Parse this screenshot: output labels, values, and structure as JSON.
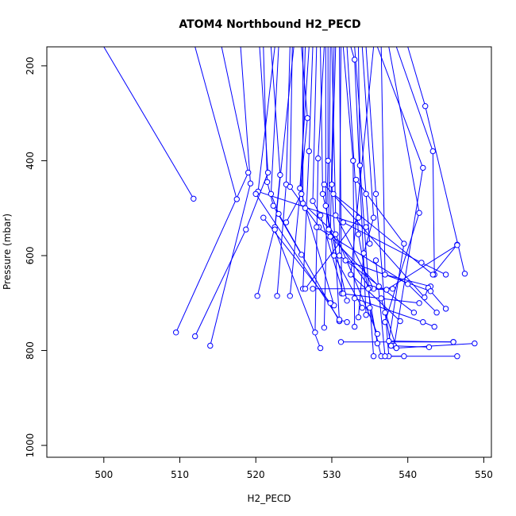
{
  "chart_data": {
    "type": "scatter",
    "title": "ATOM4 Northbound H2_PECD",
    "xlabel": "H2_PECD",
    "ylabel": "Pressure (mbar)",
    "xlim": [
      492.5,
      551.0
    ],
    "ylim": [
      1025,
      160
    ],
    "y_reversed": true,
    "x_ticks": [
      500,
      510,
      520,
      530,
      540,
      550
    ],
    "y_ticks": [
      200,
      400,
      600,
      800,
      1000
    ],
    "colors": {
      "series": "#0000ff",
      "frame": "#000000",
      "background": "#ffffff"
    },
    "series": [
      {
        "points": [
          [
            500.0,
            160
          ],
          [
            511.8,
            480
          ]
        ]
      },
      {
        "points": [
          [
            512.0,
            160
          ],
          [
            517.5,
            481
          ]
        ]
      },
      {
        "points": [
          [
            515.5,
            160
          ],
          [
            519.0,
            425
          ],
          [
            509.5,
            762
          ]
        ]
      },
      {
        "points": [
          [
            518.0,
            160
          ],
          [
            519.3,
            448
          ],
          [
            514.0,
            790
          ]
        ]
      },
      {
        "points": [
          [
            520.5,
            160
          ],
          [
            521.6,
            425
          ],
          [
            518.7,
            545
          ],
          [
            512.0,
            770
          ]
        ]
      },
      {
        "points": [
          [
            522.0,
            160
          ],
          [
            523.2,
            430
          ],
          [
            522.5,
            540
          ],
          [
            520.2,
            685
          ]
        ]
      },
      {
        "points": [
          [
            524.5,
            160
          ],
          [
            524.0,
            450
          ],
          [
            522.8,
            685
          ]
        ]
      },
      {
        "points": [
          [
            526.0,
            160
          ],
          [
            526.8,
            310
          ],
          [
            524.5,
            685
          ]
        ]
      },
      {
        "points": [
          [
            527.5,
            160
          ],
          [
            527.0,
            380
          ],
          [
            526.2,
            670
          ]
        ]
      },
      {
        "points": [
          [
            529.0,
            160
          ],
          [
            528.2,
            395
          ],
          [
            527.8,
            762
          ]
        ]
      },
      {
        "points": [
          [
            529.5,
            160
          ],
          [
            529.5,
            400
          ],
          [
            529.0,
            752
          ]
        ]
      },
      {
        "points": [
          [
            530.5,
            160
          ],
          [
            530.0,
            450
          ],
          [
            531.0,
            738
          ]
        ]
      },
      {
        "points": [
          [
            531.5,
            160
          ],
          [
            532.8,
            400
          ],
          [
            533.0,
            750
          ]
        ]
      },
      {
        "points": [
          [
            532.5,
            160
          ],
          [
            533.0,
            187
          ],
          [
            534.5,
            725
          ]
        ]
      },
      {
        "points": [
          [
            533.5,
            160
          ],
          [
            533.7,
            410
          ],
          [
            535.5,
            812
          ]
        ]
      },
      {
        "points": [
          [
            534.5,
            160
          ],
          [
            535.8,
            470
          ],
          [
            537.5,
            812
          ]
        ]
      },
      {
        "points": [
          [
            536.0,
            160
          ],
          [
            542.0,
            415
          ],
          [
            538.2,
            790
          ]
        ]
      },
      {
        "points": [
          [
            537.5,
            160
          ],
          [
            541.5,
            510
          ],
          [
            537.0,
            740
          ]
        ]
      },
      {
        "points": [
          [
            538.5,
            160
          ],
          [
            543.3,
            380
          ],
          [
            543.5,
            640
          ]
        ]
      },
      {
        "points": [
          [
            540.0,
            160
          ],
          [
            542.3,
            285
          ],
          [
            547.5,
            638
          ]
        ]
      },
      {
        "points": [
          [
            525.0,
            160
          ],
          [
            522.5,
            545
          ],
          [
            528.5,
            795
          ]
        ]
      },
      {
        "points": [
          [
            523.0,
            160
          ],
          [
            522.0,
            470
          ],
          [
            523.0,
            512
          ],
          [
            531.0,
            738
          ]
        ]
      },
      {
        "points": [
          [
            521.0,
            160
          ],
          [
            521.5,
            445
          ],
          [
            522.3,
            495
          ],
          [
            526.0,
            598
          ]
        ]
      },
      {
        "points": [
          [
            527.0,
            160
          ],
          [
            525.8,
            458
          ],
          [
            530.3,
            705
          ]
        ]
      },
      {
        "points": [
          [
            528.5,
            160
          ],
          [
            528.8,
            470
          ],
          [
            532.0,
            695
          ]
        ]
      },
      {
        "points": [
          [
            530.0,
            160
          ],
          [
            530.5,
            515
          ],
          [
            535.5,
            670
          ]
        ]
      },
      {
        "points": [
          [
            531.0,
            160
          ],
          [
            531.3,
            680
          ],
          [
            541.5,
            700
          ]
        ]
      },
      {
        "points": [
          [
            532.0,
            160
          ],
          [
            533.5,
            555
          ],
          [
            536.0,
            785
          ]
        ]
      },
      {
        "points": [
          [
            526.5,
            160
          ],
          [
            526.0,
            470
          ],
          [
            524.0,
            530
          ]
        ]
      },
      {
        "points": [
          [
            528.0,
            160
          ],
          [
            527.5,
            485
          ],
          [
            528.5,
            515
          ],
          [
            531.5,
            680
          ]
        ]
      },
      {
        "points": [
          [
            529.2,
            160
          ],
          [
            529.2,
            495
          ],
          [
            530.3,
            600
          ],
          [
            534.0,
            710
          ]
        ]
      },
      {
        "points": [
          [
            529.8,
            160
          ],
          [
            529.6,
            545
          ],
          [
            535.0,
            668
          ]
        ]
      },
      {
        "points": [
          [
            530.3,
            160
          ],
          [
            529.8,
            560
          ],
          [
            536.2,
            665
          ]
        ]
      },
      {
        "points": [
          [
            531.2,
            160
          ],
          [
            531.0,
            600
          ],
          [
            540.8,
            720
          ]
        ]
      },
      {
        "points": [
          [
            524.8,
            160
          ],
          [
            524.5,
            455
          ],
          [
            526.5,
            500
          ],
          [
            528.3,
            540
          ]
        ]
      },
      {
        "points": [
          [
            526.2,
            160
          ],
          [
            526.2,
            490
          ],
          [
            530.5,
            555
          ],
          [
            536.0,
            765
          ]
        ]
      },
      {
        "points": [
          [
            522.5,
            160
          ],
          [
            520.3,
            465
          ],
          [
            534.5,
            540
          ]
        ]
      },
      {
        "points": [
          [
            533.0,
            160
          ],
          [
            534.5,
            470
          ],
          [
            535.0,
            575
          ]
        ]
      },
      {
        "points": [
          [
            534.0,
            160
          ],
          [
            535.5,
            520
          ],
          [
            534.2,
            595
          ],
          [
            533.5,
            730
          ]
        ]
      },
      {
        "points": [
          [
            535.5,
            160
          ],
          [
            532.5,
            640
          ],
          [
            539.0,
            738
          ]
        ]
      },
      {
        "points": [
          [
            536.5,
            160
          ],
          [
            537.0,
            640
          ],
          [
            543.0,
            665
          ]
        ]
      },
      {
        "points": [
          [
            533.2,
            440
          ],
          [
            539.5,
            575
          ],
          [
            537.5,
            780
          ],
          [
            546.0,
            782
          ]
        ]
      },
      {
        "points": [
          [
            531.5,
            530
          ],
          [
            541.8,
            615
          ],
          [
            545.0,
            640
          ]
        ]
      },
      {
        "points": [
          [
            530.2,
            470
          ],
          [
            543.3,
            640
          ],
          [
            546.5,
            577
          ]
        ]
      },
      {
        "points": [
          [
            529.0,
            450
          ],
          [
            542.2,
            688
          ],
          [
            542.7,
            668
          ]
        ]
      },
      {
        "points": [
          [
            531.8,
            610
          ],
          [
            543.0,
            675
          ],
          [
            545.0,
            712
          ]
        ]
      },
      {
        "points": [
          [
            528.0,
            540
          ],
          [
            540.0,
            660
          ],
          [
            543.8,
            720
          ]
        ]
      },
      {
        "points": [
          [
            533.0,
            690
          ],
          [
            542.0,
            740
          ],
          [
            543.5,
            750
          ]
        ]
      },
      {
        "points": [
          [
            535.0,
            710
          ],
          [
            536.5,
            812
          ],
          [
            546.5,
            812
          ]
        ]
      },
      {
        "points": [
          [
            535.8,
            610
          ],
          [
            537.0,
            812
          ],
          [
            539.5,
            812
          ]
        ]
      },
      {
        "points": [
          [
            534.8,
            670
          ],
          [
            537.2,
            672
          ],
          [
            546.5,
            578
          ]
        ]
      },
      {
        "points": [
          [
            536.5,
            690
          ],
          [
            538.5,
            795
          ],
          [
            548.8,
            785
          ]
        ]
      },
      {
        "points": [
          [
            537.0,
            720
          ],
          [
            537.8,
            790
          ],
          [
            542.8,
            793
          ]
        ]
      },
      {
        "points": [
          [
            531.2,
            782
          ],
          [
            546.0,
            782
          ]
        ]
      },
      {
        "points": [
          [
            527.5,
            670
          ],
          [
            538.0,
            670
          ]
        ]
      },
      {
        "points": [
          [
            520.0,
            470
          ],
          [
            531.0,
            735
          ],
          [
            532.0,
            740
          ]
        ]
      },
      {
        "points": [
          [
            521.0,
            520
          ],
          [
            529.8,
            700
          ]
        ]
      },
      {
        "points": [
          [
            533.5,
            520
          ],
          [
            526.5,
            670
          ]
        ]
      }
    ]
  }
}
